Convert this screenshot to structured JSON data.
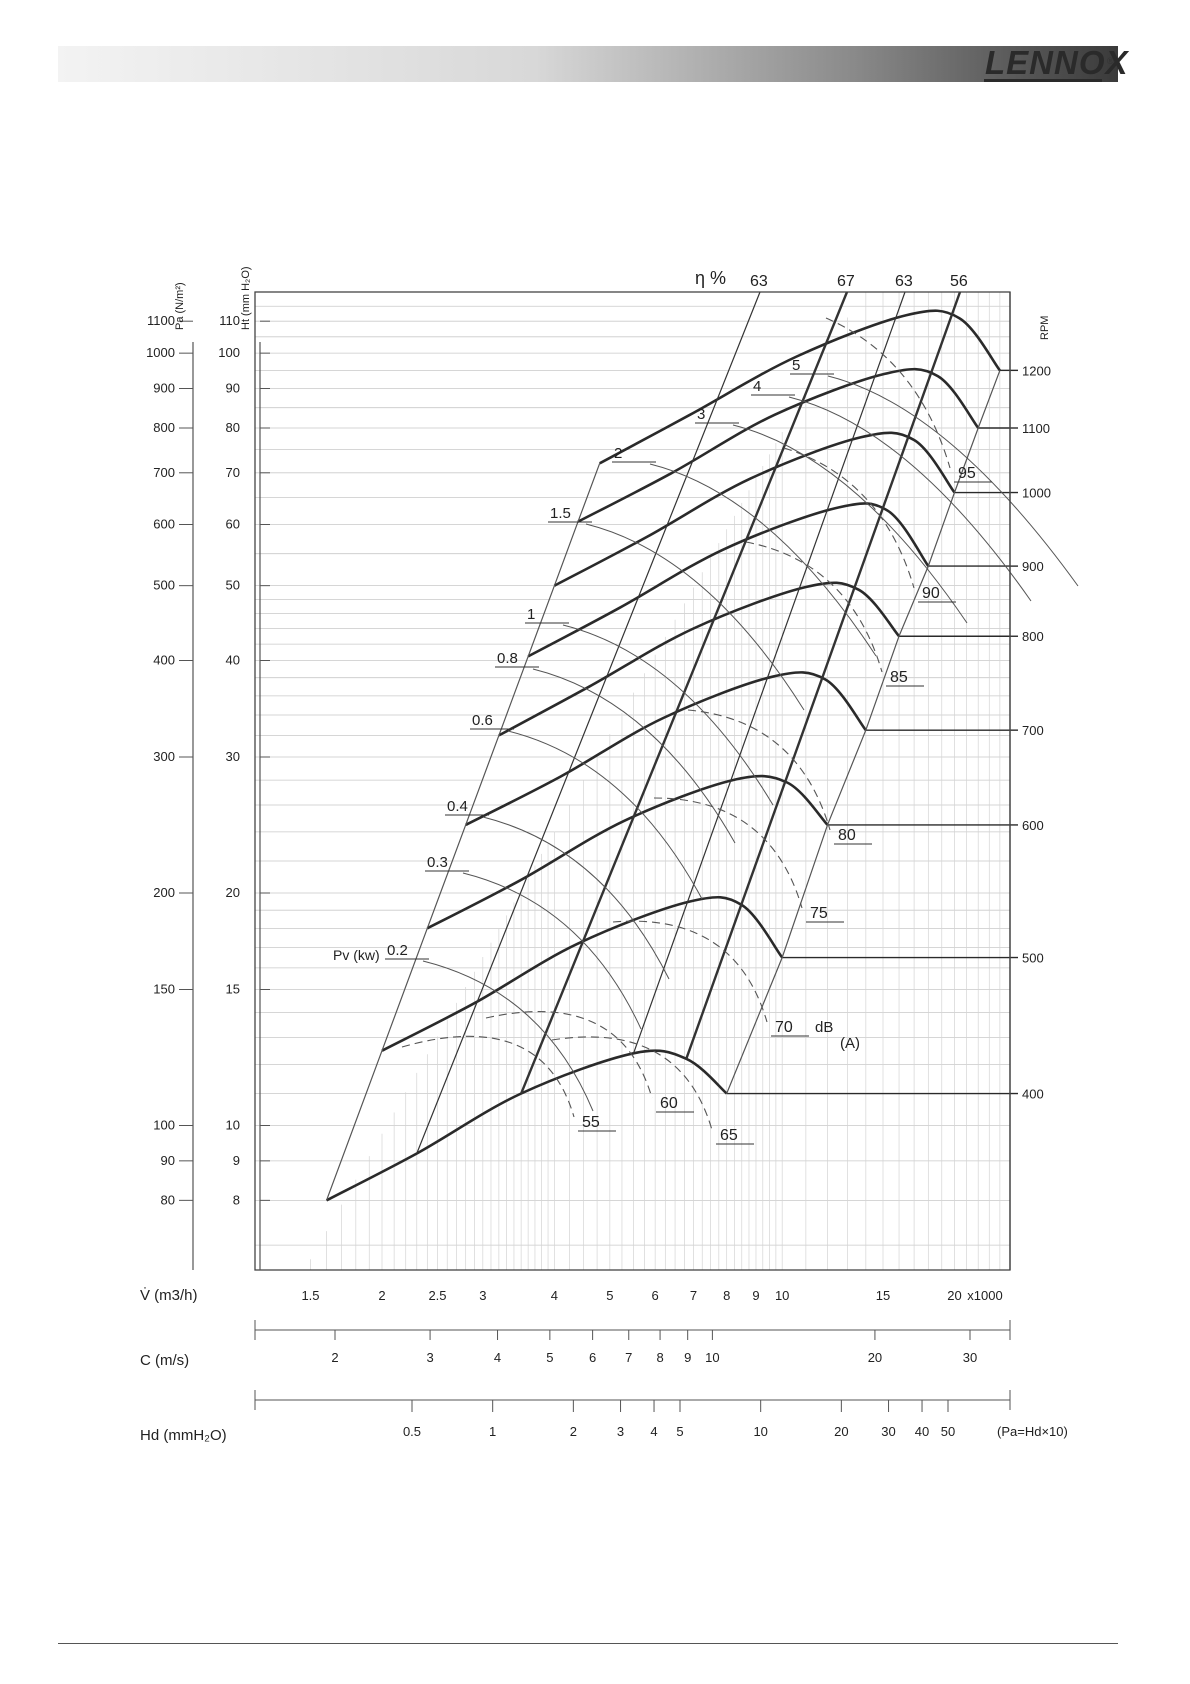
{
  "header": {
    "brand": "LENNOX",
    "brand_mark": "®"
  },
  "chart_data": {
    "type": "line",
    "title": "",
    "axes": {
      "pa": {
        "label": "Pa (N/m²)",
        "ticks": [
          80,
          90,
          100,
          150,
          200,
          300,
          400,
          500,
          600,
          700,
          800,
          900,
          1000,
          1100
        ]
      },
      "ht": {
        "label": "Ht (mm H₂O)",
        "ticks": [
          8,
          9,
          10,
          15,
          20,
          30,
          40,
          50,
          60,
          70,
          80,
          90,
          100,
          110
        ]
      },
      "rpm": {
        "label": "RPM",
        "ticks": [
          400,
          500,
          600,
          700,
          800,
          900,
          1000,
          1100,
          1200
        ]
      },
      "flow": {
        "label": "V̇ (m3/h)",
        "ticks": [
          1.5,
          2,
          2.5,
          3,
          4,
          5,
          6,
          7,
          8,
          9,
          10,
          15,
          20
        ],
        "multiplier": "x1000"
      },
      "velocity": {
        "label": "C (m/s)",
        "ticks": [
          2,
          3,
          4,
          5,
          6,
          7,
          8,
          9,
          10,
          20,
          30
        ]
      },
      "dyn_pressure": {
        "label": "Hd (mmH₂O)",
        "ticks": [
          0.5,
          1,
          2,
          3,
          4,
          5,
          10,
          20,
          30,
          40,
          50
        ],
        "note": "(Pa=Hd×10)"
      }
    },
    "efficiency_label": "η %",
    "efficiency_lines": [
      63,
      67,
      63,
      56
    ],
    "power_label": "Pv (kw)",
    "power_labels": [
      "0.2",
      "0.3",
      "0.4",
      "0.6",
      "0.8",
      "1",
      "1.5",
      "2",
      "3",
      "4",
      "5"
    ],
    "noise_unit": "dB",
    "noise_unit_weighting": "(A)",
    "noise_labels": [
      "55",
      "60",
      "65",
      "70",
      "75",
      "80",
      "85",
      "90",
      "95"
    ],
    "rpm_curves": [
      {
        "rpm": 400,
        "x": [
          1.6,
          2.3,
          3.5,
          5.5,
          6.8,
          8.0
        ],
        "y": [
          8,
          9.2,
          11,
          12.4,
          12.2,
          11
        ]
      },
      {
        "rpm": 500,
        "x": [
          2.0,
          2.9,
          4.4,
          6.9,
          8.5,
          10.0
        ],
        "y": [
          12.5,
          14.4,
          17.2,
          19.5,
          19.3,
          16.5
        ]
      },
      {
        "rpm": 600,
        "x": [
          2.4,
          3.5,
          5.3,
          8.2,
          10.2,
          12.0
        ],
        "y": [
          18,
          20.8,
          24.8,
          28.0,
          27.8,
          24.5
        ]
      },
      {
        "rpm": 700,
        "x": [
          2.8,
          4.1,
          6.2,
          9.6,
          11.9,
          14.0
        ],
        "y": [
          24.5,
          28.3,
          33.7,
          38.1,
          37.8,
          32.5
        ]
      },
      {
        "rpm": 800,
        "x": [
          3.2,
          4.6,
          7.0,
          11.0,
          13.6,
          16.0
        ],
        "y": [
          32,
          37,
          44,
          49.8,
          49.4,
          43
        ]
      },
      {
        "rpm": 900,
        "x": [
          3.6,
          5.2,
          7.9,
          12.4,
          15.3,
          18.0
        ],
        "y": [
          40.5,
          46.8,
          55.7,
          63,
          62.5,
          53
        ]
      },
      {
        "rpm": 1000,
        "x": [
          4.0,
          5.8,
          8.8,
          13.7,
          17.0,
          20.0
        ],
        "y": [
          50,
          57.8,
          68.8,
          77.8,
          77.2,
          66
        ]
      },
      {
        "rpm": 1100,
        "x": [
          4.4,
          6.4,
          9.7,
          15.1,
          18.7,
          22.0
        ],
        "y": [
          60.5,
          69.9,
          83.2,
          94,
          93.4,
          80
        ]
      },
      {
        "rpm": 1200,
        "x": [
          4.8,
          6.9,
          10.6,
          16.5,
          20.4,
          24.0
        ],
        "y": [
          72,
          83.2,
          99,
          112,
          111,
          95
        ]
      }
    ],
    "grid": true
  }
}
